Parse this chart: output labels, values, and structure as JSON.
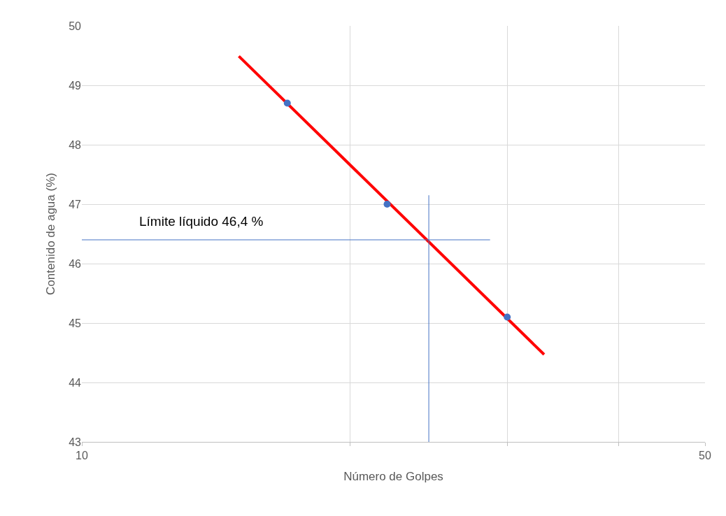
{
  "chart_data": {
    "type": "scatter",
    "xlabel": "Número de Golpes",
    "ylabel": "Contenido de agua (%)",
    "log": "x",
    "grid": true,
    "xlim": [
      10,
      50
    ],
    "xticks": [
      10,
      {
        "value": 20,
        "label": null
      },
      {
        "value": 30,
        "label": null
      },
      {
        "value": 40,
        "label": null
      },
      50
    ],
    "ylim": [
      43,
      50
    ],
    "yticks": [
      43,
      44,
      45,
      46,
      47,
      48,
      49,
      50
    ],
    "series": [
      {
        "type": "line",
        "color": "#ff0000",
        "x": [
          15,
          33
        ],
        "values": [
          49.49,
          44.47
        ],
        "line_style": "solid"
      },
      {
        "type": "line",
        "color": "#4472c4",
        "x": [
          10,
          28.7
        ],
        "values": [
          46.4,
          46.4
        ],
        "line_style": "solid"
      },
      {
        "type": "line",
        "color": "#4472c4",
        "x": [
          24.5,
          24.5
        ],
        "values": [
          43,
          47.15
        ],
        "line_style": "solid"
      },
      {
        "color": "#4472c4",
        "x": [
          17,
          22,
          30
        ],
        "values": [
          48.7,
          47.0,
          45.1
        ],
        "marker": "circle"
      }
    ],
    "annotations": [
      "Límite líquido 46,4 %"
    ]
  }
}
